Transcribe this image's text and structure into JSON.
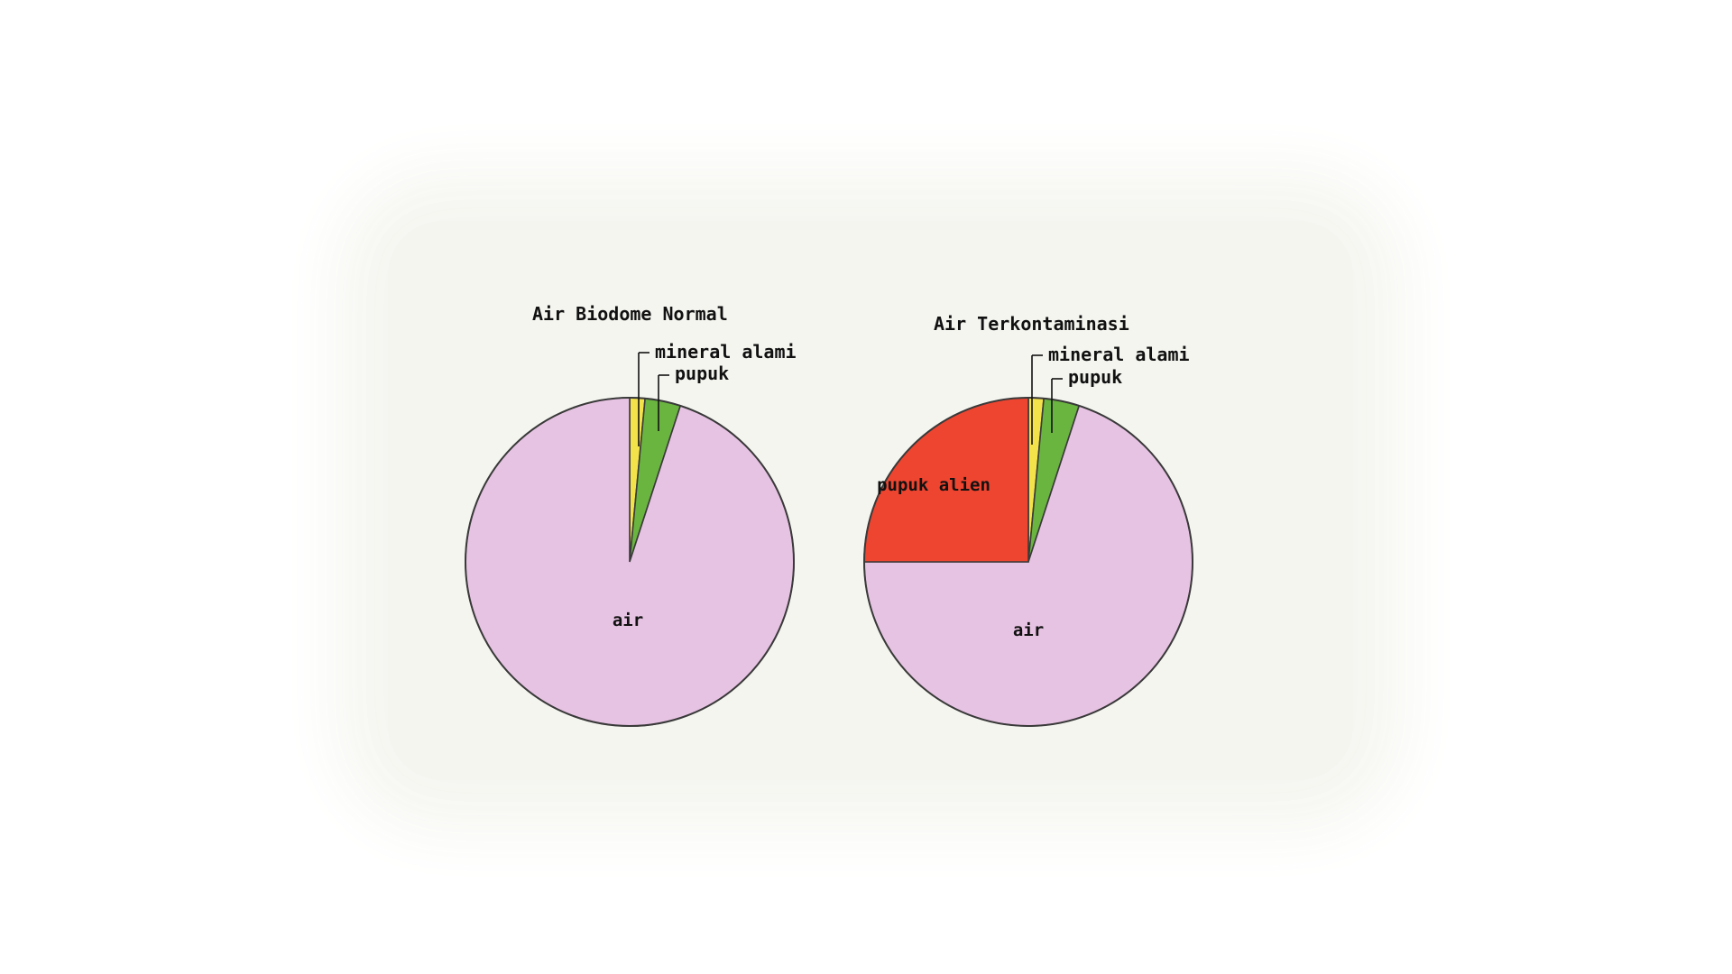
{
  "chart_data": [
    {
      "type": "pie",
      "title": "Air Biodome Normal",
      "categories": [
        "mineral alami",
        "pupuk",
        "air"
      ],
      "values": [
        1.5,
        3.5,
        95
      ],
      "colors": [
        "#f4e24a",
        "#6ab440",
        "#e7c3e3"
      ],
      "start_angle": "12 o'clock",
      "direction": "clockwise"
    },
    {
      "type": "pie",
      "title": "Air Terkontaminasi",
      "categories": [
        "mineral alami",
        "pupuk",
        "air",
        "pupuk alien"
      ],
      "values": [
        1.5,
        3.5,
        70,
        25
      ],
      "colors": [
        "#f4e24a",
        "#6ab440",
        "#e7c3e3",
        "#ee4530"
      ],
      "start_angle": "12 o'clock",
      "direction": "clockwise"
    }
  ]
}
